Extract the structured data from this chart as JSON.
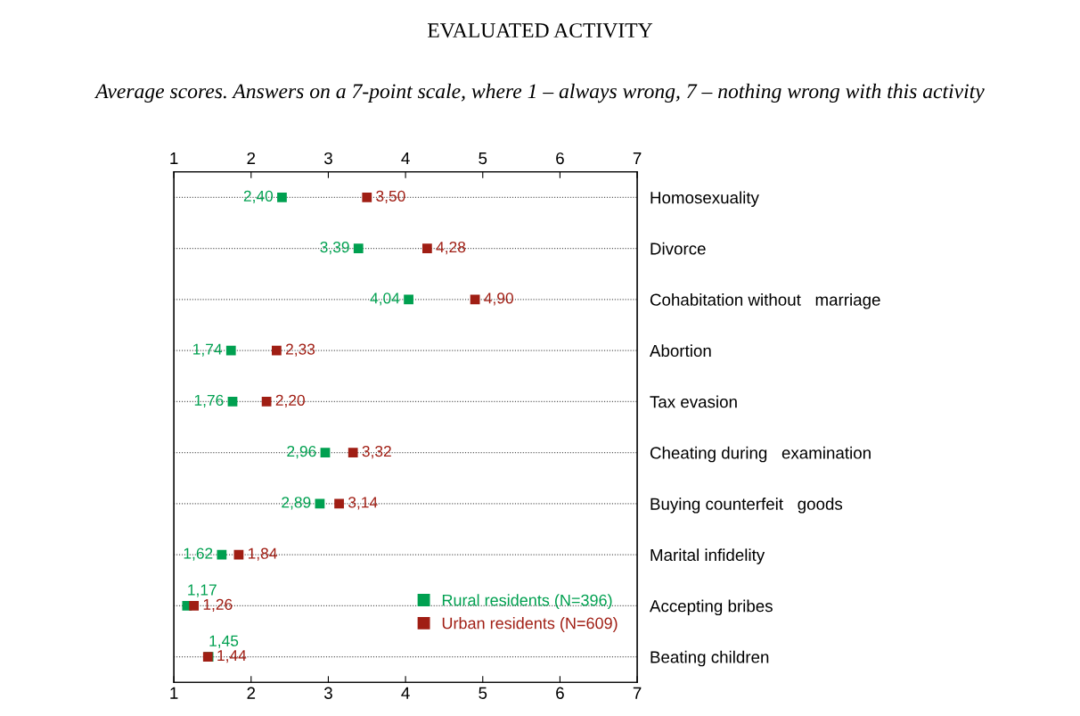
{
  "chart_data": {
    "type": "scatter",
    "orientation": "horizontal",
    "title": "EVALUATED ACTIVITY",
    "subtitle": "Average scores. Answers on a 7-point scale, where 1 – always wrong, 7 – nothing wrong with this activity",
    "categories": [
      "Homosexuality",
      "Divorce",
      "Cohabitation without   marriage",
      "Abortion",
      "Tax evasion",
      "Cheating during   examination",
      "Buying counterfeit   goods",
      "Marital infidelity",
      "Accepting bribes",
      "Beating children"
    ],
    "series": [
      {
        "name": "Rural residents (N=396)",
        "color": "#00a050",
        "values": [
          2.4,
          3.39,
          4.04,
          1.74,
          1.76,
          2.96,
          2.89,
          1.62,
          1.17,
          1.45
        ],
        "value_labels": [
          "2,40",
          "3,39",
          "4,04",
          "1,74",
          "1,76",
          "2,96",
          "2,89",
          "1,62",
          "1,17",
          "1,45"
        ]
      },
      {
        "name": "Urban residents (N=609)",
        "color": "#a01e14",
        "values": [
          3.5,
          4.28,
          4.9,
          2.33,
          2.2,
          3.32,
          3.14,
          1.84,
          1.26,
          1.44
        ],
        "value_labels": [
          "3,50",
          "4,28",
          "4,90",
          "2,33",
          "2,20",
          "3,32",
          "3,14",
          "1,84",
          "1,26",
          "1,44"
        ]
      }
    ],
    "xlim": [
      1,
      7
    ],
    "xticks": [
      1,
      2,
      3,
      4,
      5,
      6,
      7
    ],
    "x2lim": [
      1,
      7
    ],
    "x2ticks": [
      1,
      2,
      3,
      4,
      5,
      6,
      7
    ],
    "grid": "y",
    "legend": "bottom right",
    "marker": "square"
  }
}
